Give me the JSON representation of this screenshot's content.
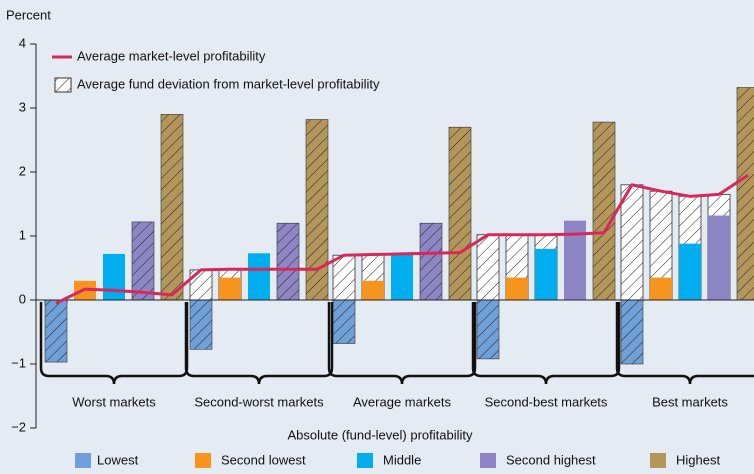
{
  "chart_data": {
    "type": "bar",
    "y_label": "Percent",
    "x_label": "Absolute (fund-level) profitability",
    "categories": [
      "Worst markets",
      "Second-worst markets",
      "Average markets",
      "Second-best markets",
      "Best markets"
    ],
    "ylim": [
      -2,
      4
    ],
    "yticks": [
      {
        "value": -2,
        "label": "−2"
      },
      {
        "value": -1,
        "label": "−1"
      },
      0,
      1,
      2,
      3,
      4
    ],
    "grid": false,
    "series": [
      {
        "name": "Lowest",
        "color": "#6fa0d8",
        "values": [
          -0.97,
          -0.77,
          -0.68,
          -0.92,
          -1.0
        ],
        "hatched": [
          true,
          true,
          true,
          true,
          true
        ]
      },
      {
        "name": "Second lowest",
        "color": "#f7941d",
        "values": [
          0.3,
          0.35,
          0.3,
          0.35,
          0.35
        ],
        "hatched": [
          false,
          false,
          false,
          false,
          false
        ]
      },
      {
        "name": "Middle",
        "color": "#00aeef",
        "values": [
          0.72,
          0.73,
          0.72,
          0.8,
          0.88
        ],
        "hatched": [
          false,
          false,
          false,
          false,
          false
        ]
      },
      {
        "name": "Second highest",
        "color": "#8e86c4",
        "values": [
          1.22,
          1.2,
          1.2,
          1.24,
          1.32
        ],
        "hatched": [
          true,
          true,
          true,
          false,
          false
        ]
      },
      {
        "name": "Highest",
        "color": "#b5965a",
        "values": [
          2.9,
          2.82,
          2.7,
          2.78,
          3.32
        ],
        "hatched": [
          true,
          true,
          true,
          true,
          true
        ]
      }
    ],
    "market_line": {
      "name": "Average market-level profitability",
      "color": "#d9275a",
      "values": [
        [
          -0.05,
          0.17,
          0.15,
          0.12,
          0.08
        ],
        [
          0.47,
          0.48,
          0.48,
          0.48,
          0.48
        ],
        [
          0.7,
          0.71,
          0.72,
          0.73,
          0.74
        ],
        [
          1.02,
          1.02,
          1.02,
          1.03,
          1.05
        ],
        [
          1.8,
          1.7,
          1.62,
          1.65,
          1.95
        ]
      ]
    },
    "deviation": {
      "name": "Average fund deviation from market-level profitability"
    }
  }
}
